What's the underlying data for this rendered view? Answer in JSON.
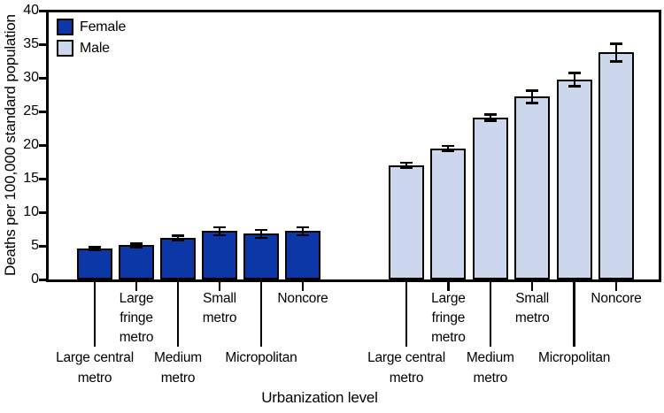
{
  "chart_data": {
    "type": "bar",
    "title": "",
    "xlabel": "Urbanization level",
    "ylabel": "Deaths per 100,000 standard population",
    "ylim": [
      0,
      40
    ],
    "yticks": [
      0,
      5,
      10,
      15,
      20,
      25,
      30,
      35,
      40
    ],
    "grid": false,
    "error_bars": true,
    "legend_position": "top-left-inside",
    "categories": [
      "Large central metro",
      "Large fringe metro",
      "Medium metro",
      "Small metro",
      "Micropolitan",
      "Noncore"
    ],
    "category_label_lines": [
      "Large central\nmetro",
      "Large\nfringe\nmetro",
      "Medium\nmetro",
      "Small\nmetro",
      "Micropolitan",
      "Noncore"
    ],
    "series": [
      {
        "name": "Female",
        "color": "#0b38a6",
        "values": [
          4.6,
          5.1,
          6.2,
          7.2,
          6.8,
          7.2
        ],
        "errors": [
          0.2,
          0.25,
          0.3,
          0.6,
          0.6,
          0.6
        ]
      },
      {
        "name": "Male",
        "color": "#ccd6ec",
        "values": [
          17.0,
          19.5,
          24.1,
          27.2,
          29.8,
          33.8
        ],
        "errors": [
          0.4,
          0.4,
          0.5,
          0.9,
          1.0,
          1.3
        ]
      }
    ]
  }
}
